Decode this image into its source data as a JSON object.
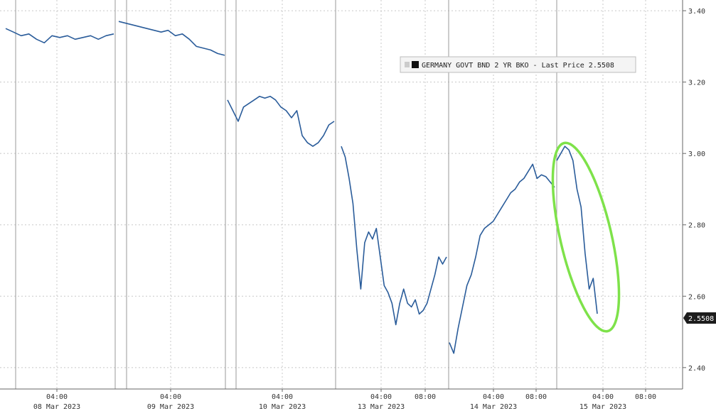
{
  "chart_data": {
    "type": "line",
    "legend": "GERMANY GOVT BND 2 YR BKO - Last Price 2.5508",
    "legend_placement": "top-right",
    "last_price_label": "2.5508",
    "last_price": 2.5508,
    "ylim": [
      2.34,
      3.43
    ],
    "y_ticks": [
      {
        "value": 3.4,
        "label": "3.40"
      },
      {
        "value": 3.2,
        "label": "3.20"
      },
      {
        "value": 3.0,
        "label": "3.00"
      },
      {
        "value": 2.8,
        "label": "2.80"
      },
      {
        "value": 2.6,
        "label": "2.60"
      },
      {
        "value": 2.4,
        "label": "2.40"
      }
    ],
    "x_ticks": [
      {
        "time": "04:00",
        "date": "08 Mar 2023"
      },
      {
        "time": "04:00",
        "date": "09 Mar 2023"
      },
      {
        "time": "04:00",
        "date": "10 Mar 2023"
      },
      {
        "time": "04:00",
        "date": "13 Mar 2023"
      },
      {
        "time": "08:00",
        "date": ""
      },
      {
        "time": "04:00",
        "date": "14 Mar 2023"
      },
      {
        "time": "08:00",
        "date": ""
      },
      {
        "time": "04:00",
        "date": "15 Mar 2023"
      },
      {
        "time": "08:00",
        "date": ""
      }
    ],
    "grid": true,
    "highlight": {
      "shape": "ellipse",
      "color": "#7ee24a",
      "around": "15 Mar 2023 drop"
    },
    "series": [
      {
        "color": "#2a5c9a",
        "segments": [
          {
            "date": "08 Mar 2023",
            "values": [
              3.35,
              3.34,
              3.33,
              3.335,
              3.32,
              3.31,
              3.33,
              3.325,
              3.33,
              3.32,
              3.325,
              3.33,
              3.32,
              3.33,
              3.335
            ]
          },
          {
            "date": "09 Mar 2023",
            "values": [
              3.37,
              3.365,
              3.36,
              3.355,
              3.35,
              3.345,
              3.34,
              3.345,
              3.33,
              3.335,
              3.32,
              3.3,
              3.295,
              3.29,
              3.28,
              3.275
            ]
          },
          {
            "date": "10 Mar 2023",
            "values": [
              3.15,
              3.12,
              3.09,
              3.13,
              3.14,
              3.15,
              3.16,
              3.155,
              3.16,
              3.15,
              3.13,
              3.12,
              3.1,
              3.12,
              3.05,
              3.03,
              3.02,
              3.03,
              3.05,
              3.08,
              3.09
            ]
          },
          {
            "date": "13 Mar 2023",
            "values": [
              3.02,
              2.99,
              2.93,
              2.86,
              2.73,
              2.62,
              2.75,
              2.78,
              2.76,
              2.79,
              2.71,
              2.63,
              2.61,
              2.58,
              2.52,
              2.58,
              2.62,
              2.58,
              2.57,
              2.59,
              2.55,
              2.56,
              2.58,
              2.62,
              2.66,
              2.71,
              2.69,
              2.71
            ]
          },
          {
            "date": "14 Mar 2023",
            "values": [
              2.47,
              2.44,
              2.51,
              2.57,
              2.63,
              2.66,
              2.71,
              2.77,
              2.79,
              2.8,
              2.81,
              2.83,
              2.85,
              2.87,
              2.89,
              2.9,
              2.92,
              2.93,
              2.95,
              2.97,
              2.93,
              2.94,
              2.935,
              2.92,
              2.905
            ]
          },
          {
            "date": "15 Mar 2023",
            "values": [
              2.98,
              3.0,
              3.02,
              3.01,
              2.98,
              2.9,
              2.85,
              2.72,
              2.62,
              2.65,
              2.5508
            ]
          }
        ]
      }
    ]
  }
}
